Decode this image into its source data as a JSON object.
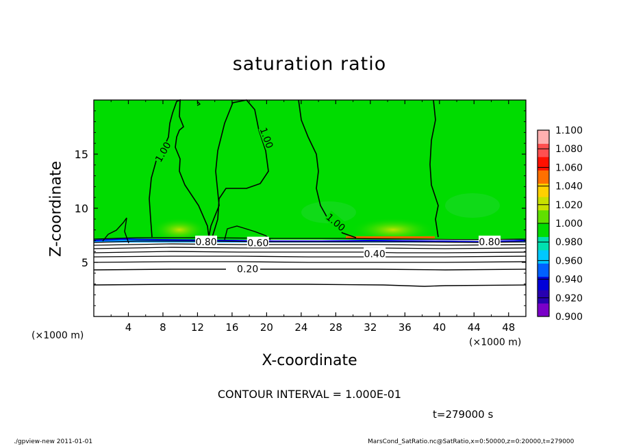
{
  "chart_data": {
    "type": "heatmap",
    "title": "saturation ratio",
    "xlabel": "X-coordinate",
    "ylabel": "Z-coordinate",
    "x_unit": "(×1000 m)",
    "z_unit": "(×1000 m)",
    "xlim": [
      0,
      50
    ],
    "ylim": [
      0,
      20
    ],
    "x_ticks": [
      "4",
      "8",
      "12",
      "16",
      "20",
      "24",
      "28",
      "32",
      "36",
      "40",
      "44",
      "48"
    ],
    "y_ticks": [
      "5",
      "10",
      "15"
    ],
    "colorbar": {
      "levels": [
        "0.900",
        "0.920",
        "0.940",
        "0.960",
        "0.980",
        "1.000",
        "1.020",
        "1.040",
        "1.060",
        "1.080",
        "1.100"
      ],
      "colors": [
        "#7a00c8",
        "#2800b0",
        "#0000d8",
        "#0060ff",
        "#00c8ff",
        "#00e0b0",
        "#00dc00",
        "#60e000",
        "#c8e000",
        "#ffd000",
        "#ff7000",
        "#ff1000",
        "#ff5050",
        "#ffb0b0"
      ]
    },
    "contour_labels": [
      {
        "text": "0.20",
        "x": 17.8,
        "z": 4.4
      },
      {
        "text": "0.40",
        "x": 32.5,
        "z": 5.8
      },
      {
        "text": "0.60",
        "x": 19.0,
        "z": 6.8
      },
      {
        "text": "0.80",
        "x": 13.0,
        "z": 6.9
      },
      {
        "text": "0.80",
        "x": 45.8,
        "z": 6.9
      },
      {
        "text": "1.00",
        "x": 8.0,
        "z": 15.2
      },
      {
        "text": "1.00",
        "x": 20.0,
        "z": 16.5
      },
      {
        "text": "1.00",
        "x": 28.0,
        "z": 8.7
      }
    ]
  },
  "labels": {
    "contour_interval": "CONTOUR INTERVAL = 1.000E-01",
    "time": "t=279000 s",
    "footer_left": "./gpview-new  2011-01-01",
    "footer_right": "MarsCond_SatRatio.nc@SatRatio,x=0:50000,z=0:20000,t=279000"
  },
  "colors": {
    "field_green": "#00dc00",
    "highlight": "#c8e000",
    "blue_edge": "#0000ff",
    "text": "#000000"
  }
}
